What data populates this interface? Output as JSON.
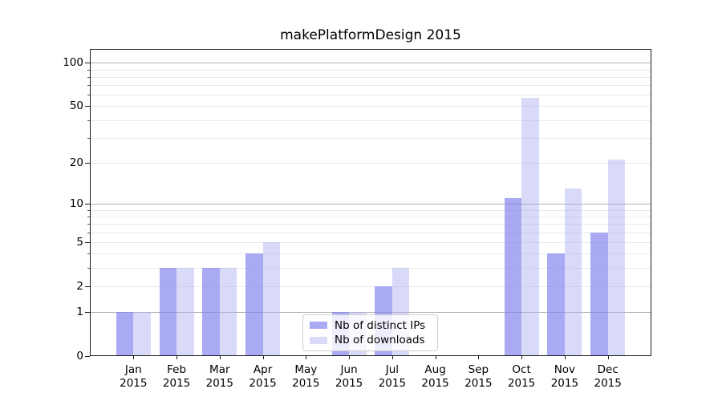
{
  "title": "makePlatformDesign 2015",
  "chart_data": {
    "type": "bar",
    "title": "makePlatformDesign 2015",
    "scale": "log10(1+y)",
    "ylim": [
      0,
      120
    ],
    "grid": true,
    "legend_position": "lower center-left inside plot",
    "categories": [
      "Jan",
      "Feb",
      "Mar",
      "Apr",
      "May",
      "Jun",
      "Jul",
      "Aug",
      "Sep",
      "Oct",
      "Nov",
      "Dec"
    ],
    "year_label": "2015",
    "series": [
      {
        "name": "Nb of distinct IPs",
        "color": "rgba(133,133,240,0.70)",
        "color_hex_on_white": "#aaaaf0",
        "values": [
          1,
          3,
          3,
          4,
          0,
          1,
          2,
          0,
          0,
          11,
          4,
          6
        ]
      },
      {
        "name": "Nb of downloads",
        "color": "rgba(175,175,240,0.47)",
        "color_hex_on_white": "#d9d9f8",
        "values": [
          1,
          3,
          3,
          5,
          0,
          1,
          3,
          0,
          0,
          57,
          13,
          21
        ]
      }
    ],
    "yticks": [
      {
        "label": "0",
        "value": 0
      },
      {
        "label": "1",
        "value": 1
      },
      {
        "label": "2",
        "value": 2
      },
      {
        "label": "5",
        "value": 5
      },
      {
        "label": "10",
        "value": 10
      },
      {
        "label": "20",
        "value": 20
      },
      {
        "label": "50",
        "value": 50
      },
      {
        "label": "100",
        "value": 100
      }
    ],
    "major_gridlines": [
      1,
      10,
      100
    ],
    "minor_gridlines": [
      2,
      3,
      4,
      5,
      6,
      7,
      8,
      9,
      20,
      30,
      40,
      50,
      60,
      70,
      80,
      90
    ],
    "colors": {
      "major_grid": "#b0b0b0",
      "minor_grid": "#e8e8e8",
      "spine": "#1a1a1a",
      "text": "#000000",
      "background": "#ffffff"
    }
  }
}
